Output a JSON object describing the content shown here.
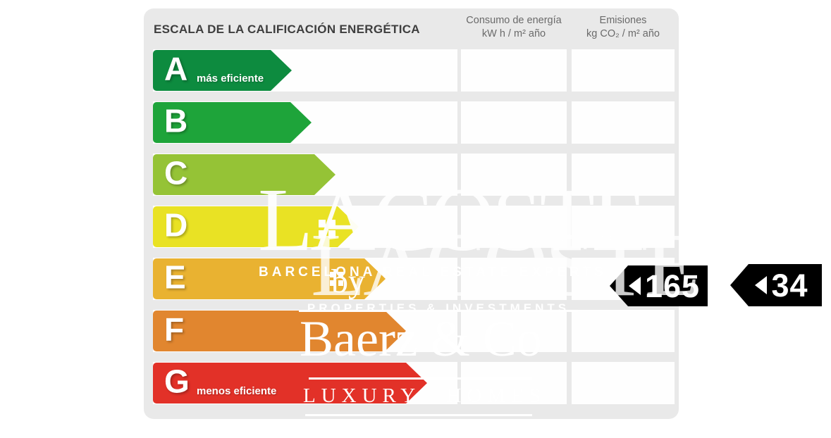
{
  "certificate": {
    "title": "ESCALA DE LA CALIFICACIÓN ENERGÉTICA",
    "columns": {
      "consumption": {
        "line1": "Consumo de energía",
        "line2": "kW h  / m² año"
      },
      "emissions": {
        "line1": "Emisiones",
        "line2": "kg CO₂  / m² año"
      }
    },
    "ratings": [
      {
        "letter": "A",
        "label": "más eficiente",
        "color": "#0d8b3f",
        "arrow_width": 197
      },
      {
        "letter": "B",
        "label": "",
        "color": "#1ea43a",
        "arrow_width": 225
      },
      {
        "letter": "C",
        "label": "",
        "color": "#95c336",
        "arrow_width": 259
      },
      {
        "letter": "D",
        "label": "",
        "color": "#e9e224",
        "arrow_width": 292
      },
      {
        "letter": "E",
        "label": "",
        "color": "#e9b231",
        "arrow_width": 330
      },
      {
        "letter": "F",
        "label": "",
        "color": "#e1862f",
        "arrow_width": 359
      },
      {
        "letter": "G",
        "label": "menos eficiente",
        "color": "#e23128",
        "arrow_width": 389
      }
    ],
    "values": {
      "rating_row": "E",
      "consumption": "165",
      "emissions": "34"
    },
    "colors": {
      "panel_background": "#e9e9e9",
      "cell_background": "#fefefe",
      "value_tag_background": "#000000"
    }
  },
  "watermark": {
    "logo_text": "LACOSTE",
    "tagline": "BARCELONA REAL ESTATE EXPERTS",
    "by": "by",
    "properties_line": "PROPERTIES & INVESTMENTS",
    "brand": "Baerz & Co",
    "brand_tagline": "LUXURY HOMES"
  }
}
